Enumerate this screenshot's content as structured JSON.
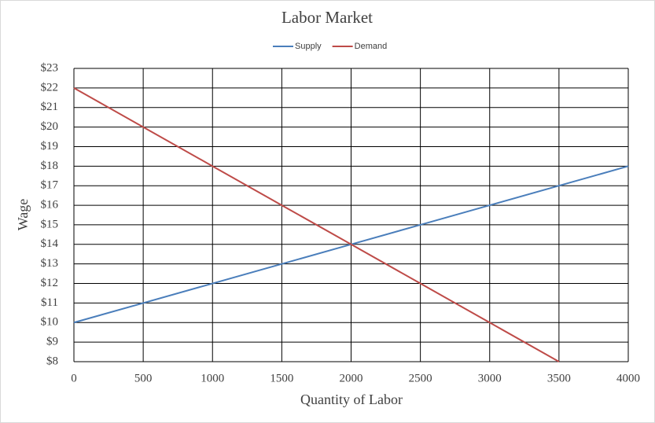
{
  "chart_data": {
    "type": "line",
    "title": "Labor Market",
    "x_label": "Quantity  of Labor",
    "y_label": "Wage",
    "x": [
      0,
      500,
      1000,
      1500,
      2000,
      2500,
      3000,
      3500,
      4000
    ],
    "series": [
      {
        "name": "Supply",
        "color": "#4a7ebb",
        "values": [
          10,
          11,
          12,
          13,
          14,
          15,
          16,
          17,
          18
        ]
      },
      {
        "name": "Demand",
        "color": "#be4b48",
        "values": [
          22,
          20,
          18,
          16,
          14,
          12,
          10,
          8,
          null
        ]
      }
    ],
    "xlim": [
      0,
      4000
    ],
    "xticks": [
      0,
      500,
      1000,
      1500,
      2000,
      2500,
      3000,
      3500,
      4000
    ],
    "ylim": [
      8,
      23
    ],
    "yticks": [
      {
        "value": 8,
        "label": "$8"
      },
      {
        "value": 9,
        "label": "$9"
      },
      {
        "value": 10,
        "label": "$10"
      },
      {
        "value": 11,
        "label": "$11"
      },
      {
        "value": 12,
        "label": "$12"
      },
      {
        "value": 13,
        "label": "$13"
      },
      {
        "value": 14,
        "label": "$14"
      },
      {
        "value": 15,
        "label": "$15"
      },
      {
        "value": 16,
        "label": "$16"
      },
      {
        "value": 17,
        "label": "$17"
      },
      {
        "value": 18,
        "label": "$18"
      },
      {
        "value": 19,
        "label": "$19"
      },
      {
        "value": 20,
        "label": "$20"
      },
      {
        "value": 21,
        "label": "$21"
      },
      {
        "value": 22,
        "label": "$22"
      },
      {
        "value": 23,
        "label": "$23"
      }
    ],
    "grid": true,
    "legend": "top"
  }
}
